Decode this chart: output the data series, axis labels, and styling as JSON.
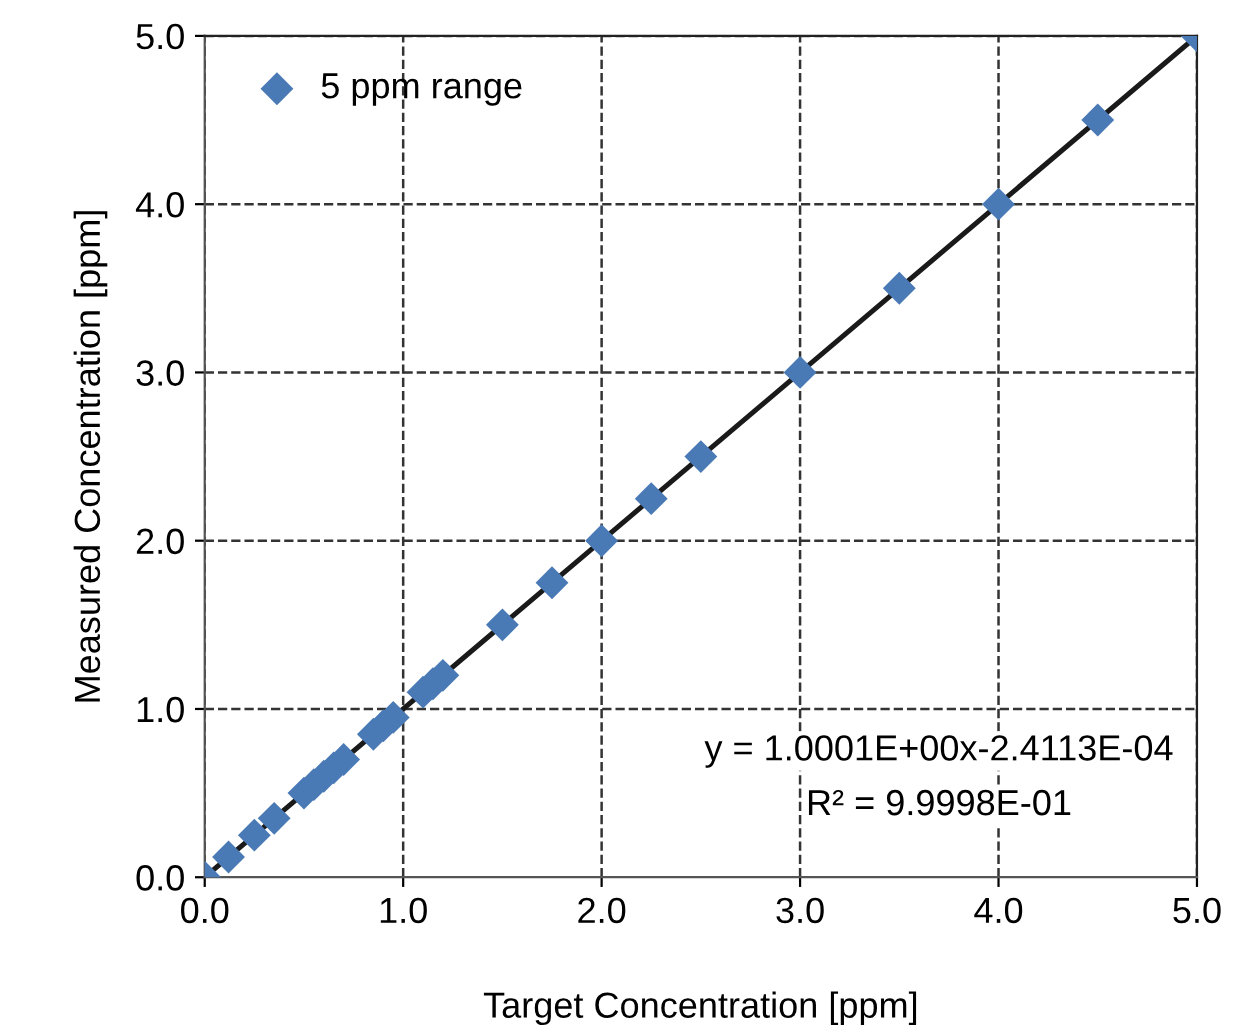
{
  "chart_data": {
    "type": "scatter",
    "xlabel": "Target Concentration [ppm]",
    "ylabel": "Measured Concentration [ppm]",
    "series": [
      {
        "name": "5 ppm range",
        "color": "#4a7ab5",
        "marker": "diamond",
        "x": [
          0,
          0.12,
          0.25,
          0.35,
          0.5,
          0.55,
          0.6,
          0.65,
          0.7,
          0.85,
          0.9,
          0.95,
          1.1,
          1.15,
          1.2,
          1.5,
          1.75,
          2.0,
          2.25,
          2.5,
          3.0,
          3.5,
          4.0,
          4.5,
          5.0
        ],
        "values": [
          0,
          0.12,
          0.25,
          0.35,
          0.5,
          0.55,
          0.6,
          0.65,
          0.7,
          0.85,
          0.9,
          0.95,
          1.1,
          1.15,
          1.2,
          1.5,
          1.75,
          2.0,
          2.25,
          2.5,
          3.0,
          3.5,
          4.0,
          4.5,
          5.0
        ]
      },
      {
        "type": "line",
        "color": "#1a1a1a",
        "line_style": "solid",
        "x": [
          0,
          5.0
        ],
        "values": [
          0,
          5.0
        ]
      }
    ],
    "xlim": [
      0,
      5.0
    ],
    "ylim": [
      0,
      5.0
    ],
    "xticks": [
      {
        "value": 0,
        "label": "0.0"
      },
      {
        "value": 1,
        "label": "1.0"
      },
      {
        "value": 2,
        "label": "2.0"
      },
      {
        "value": 3,
        "label": "3.0"
      },
      {
        "value": 4,
        "label": "4.0"
      },
      {
        "value": 5,
        "label": "5.0"
      }
    ],
    "yticks": [
      {
        "value": 0,
        "label": "0.0"
      },
      {
        "value": 1,
        "label": "1.0"
      },
      {
        "value": 2,
        "label": "2.0"
      },
      {
        "value": 3,
        "label": "3.0"
      },
      {
        "value": 4,
        "label": "4.0"
      },
      {
        "value": 5,
        "label": "5.0"
      }
    ],
    "grid": true,
    "legend": "top left",
    "annotations": [
      "y = 1.0001E+00x-2.4113E-04",
      "R² = 9.9998E-01"
    ]
  }
}
